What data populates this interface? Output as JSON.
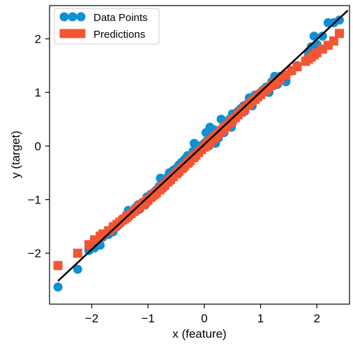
{
  "chart_data": {
    "type": "scatter",
    "xlabel": "x (feature)",
    "ylabel": "y (target)",
    "xlim": [
      -2.75,
      2.58
    ],
    "ylim": [
      -2.95,
      2.62
    ],
    "xticks": [
      -2,
      -1,
      0,
      1,
      2
    ],
    "yticks": [
      -2,
      -1,
      0,
      1,
      2
    ],
    "xtick_labels": [
      "−2",
      "−1",
      "0",
      "1",
      "2"
    ],
    "ytick_labels": [
      "−2",
      "−1",
      "0",
      "1",
      "2"
    ],
    "grid": false,
    "legend_position": "top-left",
    "colors": {
      "data": "#0f8fd6",
      "pred": "#f45532",
      "line": "#000000"
    },
    "fit_line": {
      "slope": 0.98,
      "intercept": 0.03,
      "x": [
        -2.6,
        2.55
      ]
    },
    "series": [
      {
        "name": "Data Points",
        "marker": "circle",
        "x": [
          -2.6,
          -2.25,
          -2.05,
          -1.95,
          -1.85,
          -1.8,
          -1.7,
          -1.62,
          -1.6,
          -1.55,
          -1.5,
          -1.45,
          -1.42,
          -1.38,
          -1.35,
          -1.3,
          -1.25,
          -1.22,
          -1.18,
          -1.15,
          -1.1,
          -1.05,
          -1.02,
          -1.0,
          -0.95,
          -0.92,
          -0.88,
          -0.85,
          -0.8,
          -0.78,
          -0.75,
          -0.72,
          -0.7,
          -0.65,
          -0.62,
          -0.6,
          -0.55,
          -0.5,
          -0.48,
          -0.45,
          -0.4,
          -0.38,
          -0.35,
          -0.3,
          -0.28,
          -0.25,
          -0.2,
          -0.18,
          -0.15,
          -0.1,
          -0.05,
          0.0,
          0.03,
          0.05,
          0.08,
          0.1,
          0.12,
          0.15,
          0.18,
          0.2,
          0.22,
          0.25,
          0.3,
          0.32,
          0.35,
          0.38,
          0.4,
          0.45,
          0.48,
          0.5,
          0.55,
          0.6,
          0.65,
          0.7,
          0.72,
          0.78,
          0.8,
          0.85,
          0.9,
          0.95,
          1.0,
          1.05,
          1.1,
          1.15,
          1.2,
          1.25,
          1.3,
          1.35,
          1.45,
          1.55,
          1.65,
          1.8,
          1.85,
          1.9,
          1.95,
          2.0,
          2.1,
          2.2,
          2.3,
          2.4
        ],
        "y": [
          -2.63,
          -2.3,
          -1.95,
          -1.9,
          -1.85,
          -1.7,
          -1.65,
          -1.6,
          -1.5,
          -1.5,
          -1.45,
          -1.4,
          -1.35,
          -1.28,
          -1.2,
          -1.25,
          -1.2,
          -1.15,
          -1.1,
          -1.18,
          -1.05,
          -1.1,
          -0.95,
          -0.98,
          -0.9,
          -0.95,
          -0.85,
          -0.82,
          -0.75,
          -0.6,
          -0.7,
          -0.62,
          -0.68,
          -0.58,
          -0.5,
          -0.6,
          -0.45,
          -0.42,
          -0.5,
          -0.35,
          -0.3,
          -0.38,
          -0.25,
          -0.18,
          -0.28,
          -0.2,
          -0.1,
          0.05,
          -0.12,
          0.0,
          -0.05,
          0.05,
          0.25,
          0.1,
          0.0,
          0.35,
          0.15,
          0.2,
          0.3,
          0.05,
          0.2,
          0.15,
          0.5,
          0.3,
          0.25,
          0.4,
          0.45,
          0.5,
          0.35,
          0.6,
          0.55,
          0.65,
          0.7,
          0.75,
          0.65,
          0.8,
          0.9,
          0.75,
          0.95,
          0.9,
          1.0,
          1.05,
          1.1,
          1.0,
          1.2,
          1.3,
          1.15,
          1.3,
          1.2,
          1.4,
          1.5,
          1.6,
          1.75,
          1.85,
          2.05,
          1.9,
          2.05,
          2.3,
          2.3,
          2.35
        ]
      },
      {
        "name": "Predictions",
        "marker": "square",
        "x": [
          -2.6,
          -2.25,
          -2.05,
          -1.95,
          -1.85,
          -1.8,
          -1.7,
          -1.62,
          -1.6,
          -1.55,
          -1.5,
          -1.45,
          -1.42,
          -1.38,
          -1.35,
          -1.3,
          -1.25,
          -1.22,
          -1.18,
          -1.15,
          -1.1,
          -1.05,
          -1.02,
          -1.0,
          -0.95,
          -0.92,
          -0.88,
          -0.85,
          -0.8,
          -0.78,
          -0.75,
          -0.72,
          -0.7,
          -0.65,
          -0.62,
          -0.6,
          -0.55,
          -0.5,
          -0.48,
          -0.45,
          -0.4,
          -0.38,
          -0.35,
          -0.3,
          -0.28,
          -0.25,
          -0.2,
          -0.18,
          -0.15,
          -0.1,
          -0.05,
          0.0,
          0.03,
          0.05,
          0.08,
          0.1,
          0.12,
          0.15,
          0.18,
          0.2,
          0.22,
          0.25,
          0.3,
          0.32,
          0.35,
          0.38,
          0.4,
          0.45,
          0.48,
          0.5,
          0.55,
          0.6,
          0.65,
          0.7,
          0.72,
          0.78,
          0.8,
          0.85,
          0.9,
          0.95,
          1.0,
          1.05,
          1.1,
          1.15,
          1.2,
          1.25,
          1.3,
          1.35,
          1.45,
          1.55,
          1.65,
          1.8,
          1.85,
          1.9,
          1.95,
          2.0,
          2.1,
          2.2,
          2.3,
          2.4
        ],
        "y": [
          -2.23,
          -2.0,
          -1.84,
          -1.75,
          -1.68,
          -1.64,
          -1.58,
          -1.52,
          -1.5,
          -1.46,
          -1.42,
          -1.38,
          -1.36,
          -1.33,
          -1.3,
          -1.26,
          -1.22,
          -1.19,
          -1.16,
          -1.13,
          -1.09,
          -1.05,
          -1.02,
          -1.0,
          -0.96,
          -0.93,
          -0.9,
          -0.87,
          -0.82,
          -0.8,
          -0.77,
          -0.74,
          -0.72,
          -0.67,
          -0.64,
          -0.62,
          -0.57,
          -0.52,
          -0.5,
          -0.47,
          -0.42,
          -0.4,
          -0.37,
          -0.32,
          -0.3,
          -0.27,
          -0.22,
          -0.2,
          -0.17,
          -0.12,
          -0.07,
          -0.02,
          0.01,
          0.03,
          0.06,
          0.08,
          0.1,
          0.13,
          0.16,
          0.18,
          0.2,
          0.23,
          0.28,
          0.3,
          0.33,
          0.36,
          0.38,
          0.43,
          0.46,
          0.48,
          0.53,
          0.58,
          0.63,
          0.68,
          0.7,
          0.76,
          0.78,
          0.83,
          0.87,
          0.92,
          0.96,
          1.01,
          1.05,
          1.09,
          1.13,
          1.17,
          1.21,
          1.25,
          1.33,
          1.41,
          1.48,
          1.58,
          1.62,
          1.66,
          1.7,
          1.74,
          1.81,
          1.88,
          1.96,
          2.1
        ]
      }
    ]
  }
}
